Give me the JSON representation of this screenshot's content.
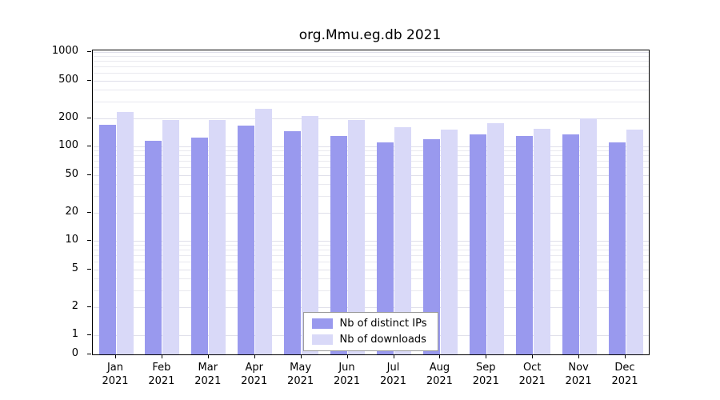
{
  "chart_data": {
    "type": "bar",
    "scale": "log",
    "title": "org.Mmu.eg.db 2021",
    "year": "2021",
    "categories": [
      "Jan",
      "Feb",
      "Mar",
      "Apr",
      "May",
      "Jun",
      "Jul",
      "Aug",
      "Sep",
      "Oct",
      "Nov",
      "Dec"
    ],
    "series": [
      {
        "name": "Nb of distinct IPs",
        "color": "#9999ee",
        "values": [
          170,
          115,
          125,
          165,
          145,
          130,
          110,
          120,
          135,
          130,
          135,
          110
        ]
      },
      {
        "name": "Nb of downloads",
        "color": "#d9d9f8",
        "values": [
          230,
          190,
          190,
          250,
          210,
          190,
          160,
          150,
          175,
          155,
          200,
          150
        ]
      }
    ],
    "y_ticks": [
      1000,
      500,
      200,
      100,
      50,
      20,
      10,
      5,
      2,
      1,
      0
    ],
    "ylim": [
      0,
      1000
    ],
    "grid": true,
    "legend_position": "bottom-center"
  },
  "colors": {
    "ips_bar": "#9999ee",
    "downloads_bar": "#d9d9f8",
    "gridline": "#e9e9ef",
    "axis": "#000000",
    "background": "#ffffff"
  }
}
